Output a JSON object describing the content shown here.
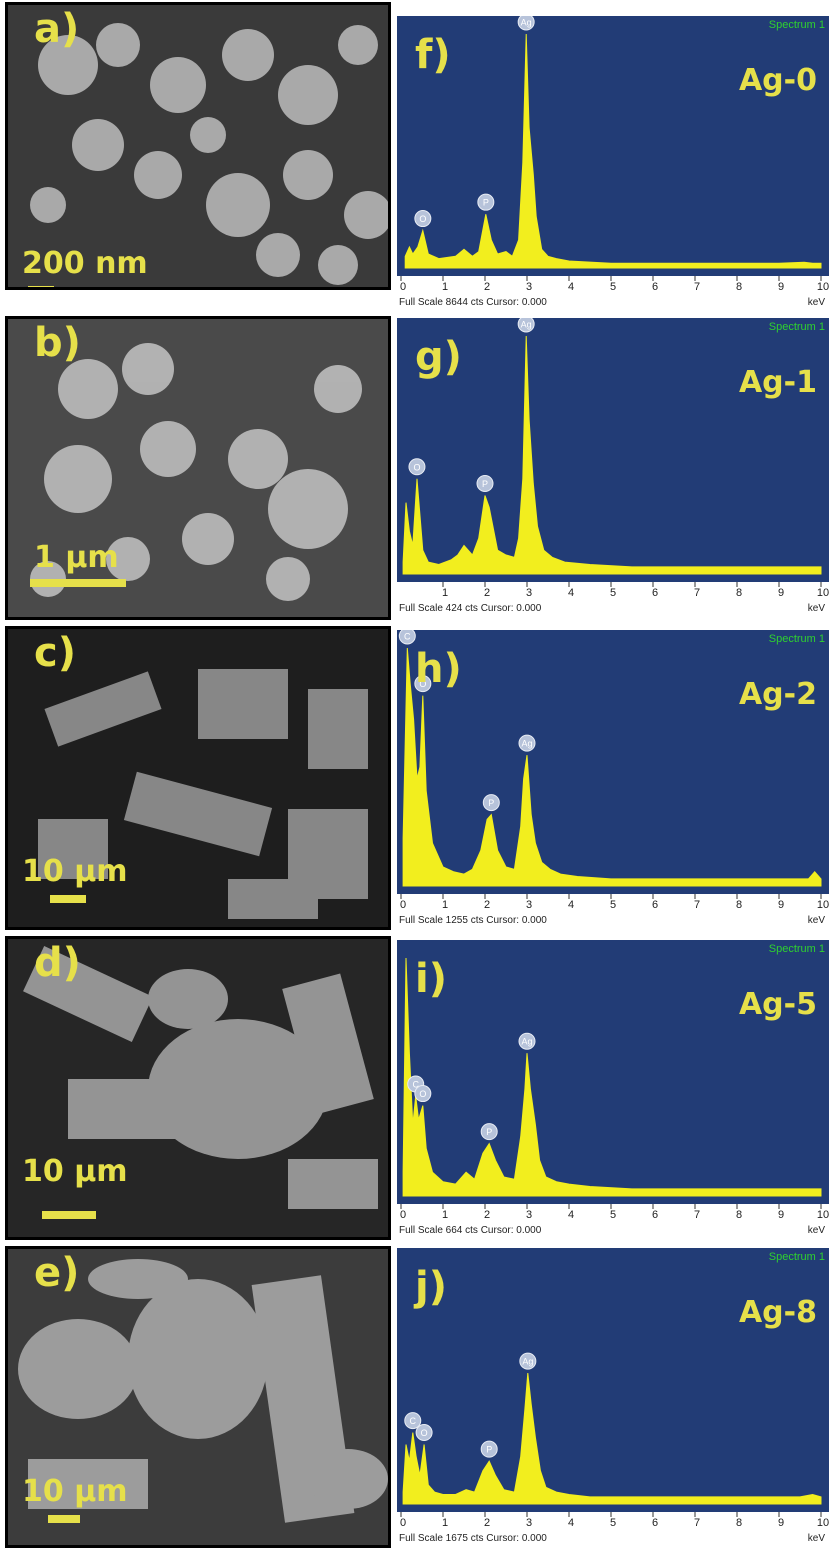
{
  "colors": {
    "plot_bg": "#223c76",
    "peak": "#f2ee1e",
    "label_yellow": "#e6e04a",
    "marker": "#b7c3da"
  },
  "sem_panels": [
    {
      "label": "a)",
      "scale": "200 nm"
    },
    {
      "label": "b)",
      "scale": "1 µm"
    },
    {
      "label": "c)",
      "scale": "10 µm"
    },
    {
      "label": "d)",
      "scale": "10 µm"
    },
    {
      "label": "e)",
      "scale": "10 µm"
    }
  ],
  "chart_data": [
    {
      "type": "area",
      "panel": "f)",
      "sample": "Ag-0",
      "spectrum": "Spectrum 1",
      "footer": "Full Scale 8644 cts Cursor: 0.000",
      "x_unit": "keV",
      "x_ticks": [
        "0",
        "1",
        "2",
        "3",
        "4",
        "5",
        "6",
        "7",
        "8",
        "9",
        "10"
      ],
      "xlim": [
        0,
        10
      ],
      "series": [
        {
          "x": [
            0.1,
            0.2,
            0.28,
            0.4,
            0.52,
            0.65,
            0.9,
            1.3,
            1.5,
            1.7,
            1.85,
            2.02,
            2.15,
            2.3,
            2.5,
            2.65,
            2.8,
            2.9,
            2.98,
            3.05,
            3.15,
            3.22,
            3.35,
            3.5,
            3.7,
            4.0,
            5.0,
            6.0,
            7.0,
            8.0,
            9.0,
            9.6,
            9.8,
            10
          ],
          "y": [
            0.05,
            0.09,
            0.06,
            0.09,
            0.16,
            0.06,
            0.04,
            0.05,
            0.08,
            0.05,
            0.07,
            0.23,
            0.12,
            0.06,
            0.07,
            0.05,
            0.12,
            0.45,
            1.0,
            0.6,
            0.4,
            0.22,
            0.08,
            0.05,
            0.04,
            0.03,
            0.02,
            0.02,
            0.02,
            0.02,
            0.02,
            0.025,
            0.02,
            0.02
          ]
        }
      ],
      "peak_labels": [
        {
          "text": "O",
          "x": 0.52,
          "y": 0.16
        },
        {
          "text": "P",
          "x": 2.02,
          "y": 0.23
        },
        {
          "text": "Ag",
          "x": 2.98,
          "y": 1.0
        }
      ]
    },
    {
      "type": "area",
      "panel": "g)",
      "sample": "Ag-1",
      "spectrum": "Spectrum 1",
      "footer": "Full Scale 424 cts Cursor: 0.000",
      "x_unit": "keV",
      "x_ticks": [
        "1",
        "2",
        "3",
        "4",
        "5",
        "6",
        "7",
        "8",
        "9",
        "10"
      ],
      "xlim": [
        0,
        10
      ],
      "series": [
        {
          "x": [
            0.05,
            0.12,
            0.2,
            0.28,
            0.38,
            0.52,
            0.65,
            0.9,
            1.2,
            1.35,
            1.5,
            1.7,
            1.85,
            2.0,
            2.1,
            2.3,
            2.5,
            2.7,
            2.8,
            2.9,
            2.98,
            3.05,
            3.15,
            3.25,
            3.4,
            3.6,
            3.9,
            4.5,
            5.5,
            6.5,
            7.5,
            8.5,
            9.5,
            10
          ],
          "y": [
            0.05,
            0.3,
            0.18,
            0.12,
            0.4,
            0.1,
            0.05,
            0.04,
            0.06,
            0.08,
            0.12,
            0.08,
            0.15,
            0.33,
            0.28,
            0.1,
            0.08,
            0.07,
            0.15,
            0.4,
            1.0,
            0.65,
            0.38,
            0.2,
            0.1,
            0.07,
            0.05,
            0.04,
            0.03,
            0.03,
            0.03,
            0.03,
            0.03,
            0.03
          ]
        }
      ],
      "peak_labels": [
        {
          "text": "O",
          "x": 0.38,
          "y": 0.4
        },
        {
          "text": "P",
          "x": 2.0,
          "y": 0.33
        },
        {
          "text": "Ag",
          "x": 2.98,
          "y": 1.0
        }
      ]
    },
    {
      "type": "area",
      "panel": "h)",
      "sample": "Ag-2",
      "spectrum": "Spectrum 1",
      "footer": "Full Scale 1255 cts Cursor: 0.000",
      "x_unit": "keV",
      "x_ticks": [
        "0",
        "1",
        "2",
        "3",
        "4",
        "5",
        "6",
        "7",
        "8",
        "9",
        "10"
      ],
      "xlim": [
        0,
        10
      ],
      "series": [
        {
          "x": [
            0.05,
            0.15,
            0.22,
            0.3,
            0.38,
            0.45,
            0.52,
            0.6,
            0.75,
            1.0,
            1.25,
            1.5,
            1.7,
            1.9,
            2.05,
            2.15,
            2.3,
            2.5,
            2.7,
            2.85,
            2.92,
            3.0,
            3.1,
            3.2,
            3.35,
            3.55,
            3.8,
            4.2,
            5.0,
            6.0,
            7.0,
            8.0,
            9.0,
            9.7,
            9.85,
            10
          ],
          "y": [
            0.2,
            1.0,
            0.85,
            0.7,
            0.45,
            0.5,
            0.8,
            0.4,
            0.18,
            0.08,
            0.06,
            0.05,
            0.07,
            0.15,
            0.28,
            0.3,
            0.15,
            0.08,
            0.07,
            0.25,
            0.45,
            0.55,
            0.3,
            0.18,
            0.1,
            0.07,
            0.05,
            0.04,
            0.03,
            0.03,
            0.03,
            0.03,
            0.03,
            0.03,
            0.06,
            0.03
          ]
        }
      ],
      "peak_labels": [
        {
          "text": "C",
          "x": 0.15,
          "y": 1.0
        },
        {
          "text": "O",
          "x": 0.52,
          "y": 0.8
        },
        {
          "text": "P",
          "x": 2.15,
          "y": 0.3
        },
        {
          "text": "Ag",
          "x": 3.0,
          "y": 0.55
        }
      ]
    },
    {
      "type": "area",
      "panel": "i)",
      "sample": "Ag-5",
      "spectrum": "Spectrum 1",
      "footer": "Full Scale 664 cts Cursor: 0.000",
      "x_unit": "keV",
      "x_ticks": [
        "0",
        "1",
        "2",
        "3",
        "4",
        "5",
        "6",
        "7",
        "8",
        "9",
        "10"
      ],
      "xlim": [
        0,
        10
      ],
      "series": [
        {
          "x": [
            0.05,
            0.12,
            0.2,
            0.28,
            0.35,
            0.42,
            0.52,
            0.6,
            0.75,
            1.0,
            1.3,
            1.55,
            1.75,
            1.95,
            2.1,
            2.25,
            2.45,
            2.7,
            2.85,
            2.95,
            3.0,
            3.08,
            3.2,
            3.3,
            3.45,
            3.7,
            4.0,
            4.5,
            5.5,
            6.5,
            7.5,
            8.5,
            9.5,
            10
          ],
          "y": [
            0.1,
            1.0,
            0.6,
            0.3,
            0.42,
            0.32,
            0.38,
            0.2,
            0.1,
            0.06,
            0.05,
            0.1,
            0.07,
            0.18,
            0.22,
            0.15,
            0.08,
            0.07,
            0.25,
            0.45,
            0.6,
            0.45,
            0.3,
            0.15,
            0.08,
            0.06,
            0.05,
            0.04,
            0.03,
            0.03,
            0.03,
            0.03,
            0.03,
            0.03
          ]
        }
      ],
      "peak_labels": [
        {
          "text": "C",
          "x": 0.35,
          "y": 0.42
        },
        {
          "text": "O",
          "x": 0.52,
          "y": 0.38
        },
        {
          "text": "P",
          "x": 2.1,
          "y": 0.22
        },
        {
          "text": "Ag",
          "x": 3.0,
          "y": 0.6
        }
      ]
    },
    {
      "type": "area",
      "panel": "j)",
      "sample": "Ag-8",
      "spectrum": "Spectrum 1",
      "footer": "Full Scale 1675 cts Cursor: 0.000",
      "x_unit": "keV",
      "x_ticks": [
        "0",
        "1",
        "2",
        "3",
        "4",
        "5",
        "6",
        "7",
        "8",
        "9",
        "10"
      ],
      "xlim": [
        0,
        10
      ],
      "series": [
        {
          "x": [
            0.05,
            0.12,
            0.2,
            0.28,
            0.36,
            0.45,
            0.55,
            0.65,
            0.8,
            1.0,
            1.3,
            1.55,
            1.75,
            1.95,
            2.1,
            2.25,
            2.45,
            2.7,
            2.85,
            2.95,
            3.02,
            3.1,
            3.2,
            3.32,
            3.45,
            3.7,
            4.0,
            4.5,
            5.5,
            6.5,
            7.5,
            8.5,
            9.5,
            9.8,
            10
          ],
          "y": [
            0.05,
            0.25,
            0.18,
            0.3,
            0.2,
            0.12,
            0.25,
            0.08,
            0.05,
            0.04,
            0.04,
            0.06,
            0.05,
            0.14,
            0.18,
            0.12,
            0.06,
            0.05,
            0.2,
            0.4,
            0.55,
            0.42,
            0.28,
            0.14,
            0.07,
            0.05,
            0.04,
            0.03,
            0.03,
            0.03,
            0.03,
            0.03,
            0.03,
            0.04,
            0.03
          ]
        }
      ],
      "peak_labels": [
        {
          "text": "C",
          "x": 0.28,
          "y": 0.3
        },
        {
          "text": "O",
          "x": 0.55,
          "y": 0.25
        },
        {
          "text": "P",
          "x": 2.1,
          "y": 0.18
        },
        {
          "text": "Ag",
          "x": 3.02,
          "y": 0.55
        }
      ]
    }
  ]
}
